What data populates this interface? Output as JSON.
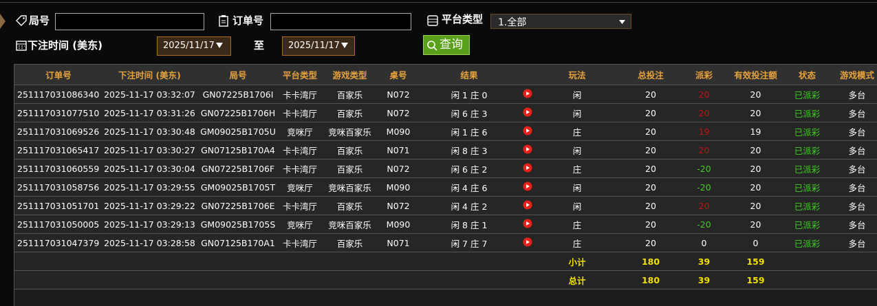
{
  "filters": {
    "round_label": "局号",
    "order_label": "订单号",
    "platform_label": "平台类型",
    "platform_value": "1.全部",
    "time_label": "下注时间 (美东)",
    "start_date": "2025/11/17",
    "to_label": "至",
    "end_date": "2025/11/17",
    "query_button": "查询"
  },
  "table": {
    "columns": [
      "订单号",
      "下注时间 (美东)",
      "局号",
      "平台类型",
      "游戏类型",
      "桌号",
      "结果",
      "玩法",
      "总投注",
      "派彩",
      "有效投注额",
      "状态",
      "游戏模式"
    ],
    "rows": [
      [
        "251117031086340",
        "2025-11-17 03:32:07",
        "GN07225B1706I",
        "卡卡湾厅",
        "百家乐",
        "N072",
        "闲 1 庄 0",
        "闲",
        20,
        20,
        20,
        "已派彩",
        "多台"
      ],
      [
        "251117031077510",
        "2025-11-17 03:31:26",
        "GN07225B1706H",
        "卡卡湾厅",
        "百家乐",
        "N072",
        "闲 6 庄 3",
        "闲",
        20,
        20,
        20,
        "已派彩",
        "多台"
      ],
      [
        "251117031069526",
        "2025-11-17 03:30:48",
        "GM09025B1705U",
        "竞咪厅",
        "竞咪百家乐",
        "M090",
        "闲 1 庄 6",
        "庄",
        20,
        19,
        19,
        "已派彩",
        "多台"
      ],
      [
        "251117031065417",
        "2025-11-17 03:30:27",
        "GN07125B170A4",
        "卡卡湾厅",
        "百家乐",
        "N071",
        "闲 8 庄 3",
        "闲",
        20,
        20,
        20,
        "已派彩",
        "多台"
      ],
      [
        "251117031060559",
        "2025-11-17 03:30:04",
        "GN07225B1706F",
        "卡卡湾厅",
        "百家乐",
        "N072",
        "闲 6 庄 2",
        "庄",
        20,
        -20,
        20,
        "已派彩",
        "多台"
      ],
      [
        "251117031058756",
        "2025-11-17 03:29:55",
        "GM09025B1705T",
        "竞咪厅",
        "竞咪百家乐",
        "M090",
        "闲 4 庄 6",
        "闲",
        20,
        -20,
        20,
        "已派彩",
        "多台"
      ],
      [
        "251117031051701",
        "2025-11-17 03:29:22",
        "GN07225B1706E",
        "卡卡湾厅",
        "百家乐",
        "N072",
        "闲 4 庄 2",
        "闲",
        20,
        20,
        20,
        "已派彩",
        "多台"
      ],
      [
        "251117031050005",
        "2025-11-17 03:29:13",
        "GM09025B1705S",
        "竞咪厅",
        "竞咪百家乐",
        "M090",
        "闲 8 庄 1",
        "庄",
        20,
        -20,
        20,
        "已派彩",
        "多台"
      ],
      [
        "251117031047379",
        "2025-11-17 03:28:58",
        "GN07125B170A1",
        "卡卡湾厅",
        "百家乐",
        "N071",
        "闲 7 庄 7",
        "庄",
        20,
        0,
        0,
        "已派彩",
        "多台"
      ]
    ],
    "summary": [
      {
        "label": "小计",
        "total_bet": 180,
        "payout": 39,
        "valid_bet": 159
      },
      {
        "label": "总计",
        "total_bet": 180,
        "payout": 39,
        "valid_bet": 159
      }
    ]
  }
}
